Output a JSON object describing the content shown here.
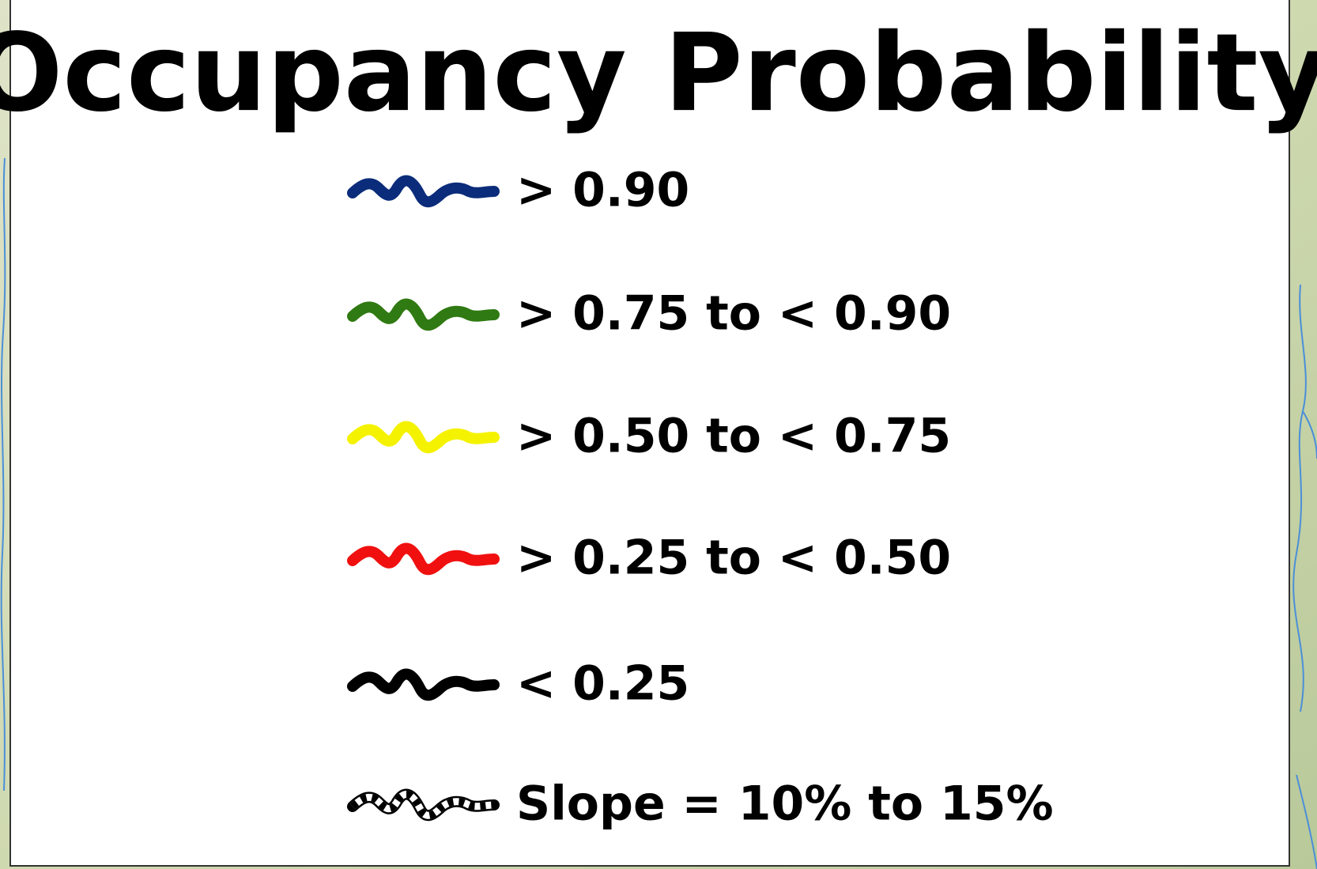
{
  "title": "Occupancy Probability",
  "legend": {
    "items": [
      {
        "label": "> 0.90",
        "color": "#0b2c7a"
      },
      {
        "label": "> 0.75 to < 0.90",
        "color": "#2f7a12"
      },
      {
        "label": "> 0.50 to < 0.75",
        "color": "#f5f200"
      },
      {
        "label": "> 0.25 to < 0.50",
        "color": "#f01010"
      },
      {
        "label": "< 0.25",
        "color": "#000000"
      },
      {
        "label": "Slope = 10% to 15%",
        "color": "#000000",
        "style": "checkered"
      }
    ]
  }
}
